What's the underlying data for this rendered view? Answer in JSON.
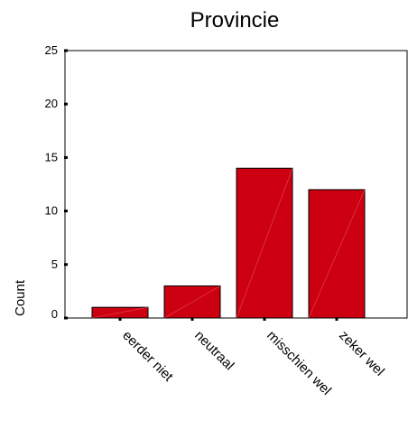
{
  "chart_data": {
    "type": "bar",
    "title": "Provincie",
    "xlabel": "",
    "ylabel": "Count",
    "categories": [
      "eerder niet",
      "neutraal",
      "misschien wel",
      "zeker wel"
    ],
    "values": [
      1,
      3,
      14,
      12
    ],
    "ylim": [
      0,
      25
    ],
    "yticks": [
      "0",
      "5",
      "10",
      "15",
      "20",
      "25"
    ],
    "grid": false,
    "colors": {
      "bar_fill": "#cc0011",
      "bar_stroke": "#000000",
      "axis": "#000000",
      "background": "#ffffff"
    }
  }
}
